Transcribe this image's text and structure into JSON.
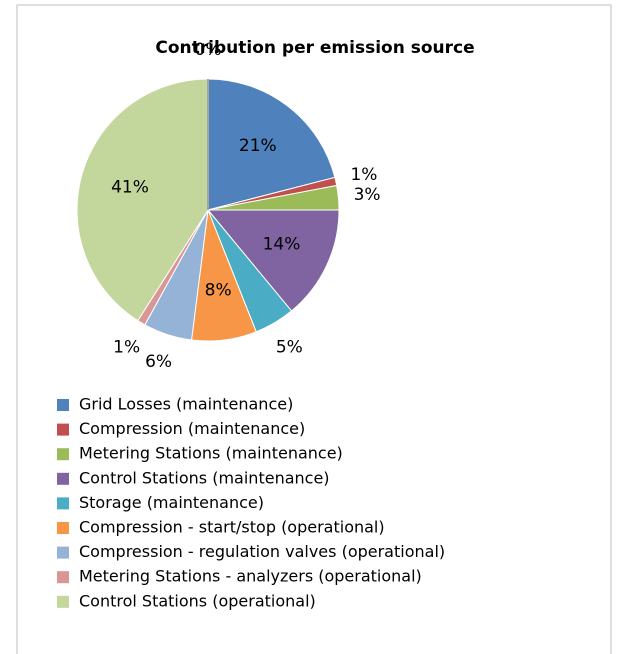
{
  "chart_data": {
    "type": "pie",
    "title": "Contribution per emission source",
    "categories": [
      "Grid Losses (maintenance)",
      "Compression  (maintenance)",
      "Metering Stations  (maintenance)",
      "Control Stations  (maintenance)",
      "Storage  (maintenance)",
      "Compression - start/stop (operational)",
      "Compression - regulation valves (operational)",
      "Metering Stations - analyzers (operational)",
      "Control Stations (operational)",
      null
    ],
    "values": [
      21,
      1,
      3,
      14,
      5,
      8,
      6,
      1,
      41,
      0
    ],
    "value_labels": [
      "21%",
      "1%",
      "3%",
      "14%",
      "5%",
      "8%",
      "6%",
      "1%",
      "41%",
      "0%"
    ],
    "colors": [
      "#4f81bd",
      "#c0504d",
      "#9bbb59",
      "#8064a2",
      "#4bacc6",
      "#f79646",
      "#95b3d7",
      "#d99694",
      "#c3d69b",
      "#a5a5a5"
    ],
    "legend": "bottom"
  }
}
